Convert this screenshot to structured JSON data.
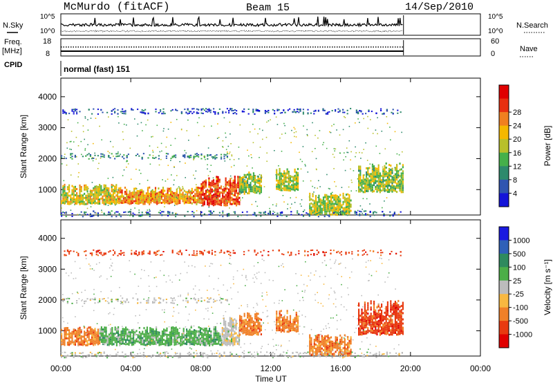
{
  "header": {
    "station": "McMurdo (fitACF)",
    "beam": "Beam 15",
    "date": "14/Sep/2010"
  },
  "side_labels": {
    "nsky": "N.Sky",
    "nsearch": "N.Search",
    "freq": "Freq.",
    "mhz": "[MHz]",
    "nave": "Nave",
    "cpid": "CPID",
    "cpid_value": "normal (fast) 151"
  },
  "top_axes": {
    "noise_left_ticks": [
      "10^5",
      "10^0"
    ],
    "noise_right_ticks": [
      "10^5",
      "10^0"
    ],
    "freq_left_ticks": [
      "18",
      "8"
    ],
    "nave_right_ticks": [
      "60",
      "0"
    ]
  },
  "chart_data": [
    {
      "type": "heatmap",
      "title": "Power",
      "ylabel": "Slant Range [km]",
      "xlabel": "Time UT",
      "xlim": [
        "00:00",
        "24:00"
      ],
      "x_ticks": [
        "00:00",
        "04:00",
        "08:00",
        "12:00",
        "16:00",
        "20:00",
        "00:00"
      ],
      "ylim": [
        180,
        4600
      ],
      "y_ticks": [
        1000,
        2000,
        3000,
        4000
      ],
      "colorbar": {
        "label": "Power [dB]",
        "ticks": [
          "4",
          "8",
          "12",
          "16",
          "20",
          "24",
          "28"
        ],
        "colors": [
          "#1414d8",
          "#2f55b0",
          "#2e8a6c",
          "#45b04a",
          "#b8c02a",
          "#f5b800",
          "#f08020",
          "#e83010",
          "#e00000"
        ]
      },
      "regions": [
        {
          "t0": 0.0,
          "t1": 3.2,
          "r0": 560,
          "r1": 1200,
          "level": 0.55
        },
        {
          "t0": 3.2,
          "t1": 8.0,
          "r0": 560,
          "r1": 1100,
          "level": 0.7
        },
        {
          "t0": 8.0,
          "t1": 10.2,
          "r0": 520,
          "r1": 1450,
          "level": 0.85
        },
        {
          "t0": 10.2,
          "t1": 11.5,
          "r0": 900,
          "r1": 1600,
          "level": 0.45
        },
        {
          "t0": 12.3,
          "t1": 13.6,
          "r0": 1000,
          "r1": 1700,
          "level": 0.5
        },
        {
          "t0": 14.2,
          "t1": 16.6,
          "r0": 220,
          "r1": 900,
          "level": 0.5
        },
        {
          "t0": 17.0,
          "t1": 19.6,
          "r0": 950,
          "r1": 1900,
          "level": 0.45
        }
      ],
      "sparse_bands": [
        {
          "t0": 0.0,
          "t1": 19.5,
          "r": 3550,
          "level": 0.1
        },
        {
          "t0": 0.0,
          "t1": 9.5,
          "r": 2100,
          "level": 0.25
        },
        {
          "t0": 0.0,
          "t1": 19.5,
          "r": 240,
          "level": 0.15
        }
      ]
    },
    {
      "type": "heatmap",
      "title": "Velocity",
      "ylabel": "Slant Range [km]",
      "xlabel": "Time UT",
      "xlim": [
        "00:00",
        "24:00"
      ],
      "x_ticks": [
        "00:00",
        "04:00",
        "08:00",
        "12:00",
        "16:00",
        "20:00",
        "00:00"
      ],
      "ylim": [
        180,
        4600
      ],
      "y_ticks": [
        1000,
        2000,
        3000,
        4000
      ],
      "colorbar": {
        "label": "Velocity [m s⁻¹]",
        "ticks": [
          "1000",
          "500",
          "100",
          "25",
          "-25",
          "-100",
          "-500",
          "-1000"
        ],
        "colors": [
          "#1a1ae0",
          "#2f60b8",
          "#2e8a5e",
          "#4cae48",
          "#bcbcbc",
          "#f8b840",
          "#f08028",
          "#e83a10",
          "#e00000"
        ]
      },
      "regions": [
        {
          "t0": 0.0,
          "t1": 2.2,
          "r0": 560,
          "r1": 1150,
          "vel": "-100"
        },
        {
          "t0": 2.2,
          "t1": 9.2,
          "r0": 560,
          "r1": 1150,
          "vel": "100"
        },
        {
          "t0": 9.2,
          "t1": 10.2,
          "r0": 560,
          "r1": 1450,
          "vel": "25"
        },
        {
          "t0": 10.2,
          "t1": 11.5,
          "r0": 900,
          "r1": 1600,
          "vel": "-100"
        },
        {
          "t0": 12.3,
          "t1": 13.6,
          "r0": 1000,
          "r1": 1700,
          "vel": "-100"
        },
        {
          "t0": 14.2,
          "t1": 16.6,
          "r0": 220,
          "r1": 900,
          "vel": "-100"
        },
        {
          "t0": 17.0,
          "t1": 19.6,
          "r0": 900,
          "r1": 2000,
          "vel": "-500"
        }
      ],
      "sparse_bands": [
        {
          "t0": 0.0,
          "t1": 19.5,
          "r": 3550,
          "vel": "-500"
        },
        {
          "t0": 0.0,
          "t1": 9.5,
          "r": 2000,
          "vel": "25"
        },
        {
          "t0": 0.0,
          "t1": 19.5,
          "r": 240,
          "vel": "25"
        }
      ]
    }
  ]
}
